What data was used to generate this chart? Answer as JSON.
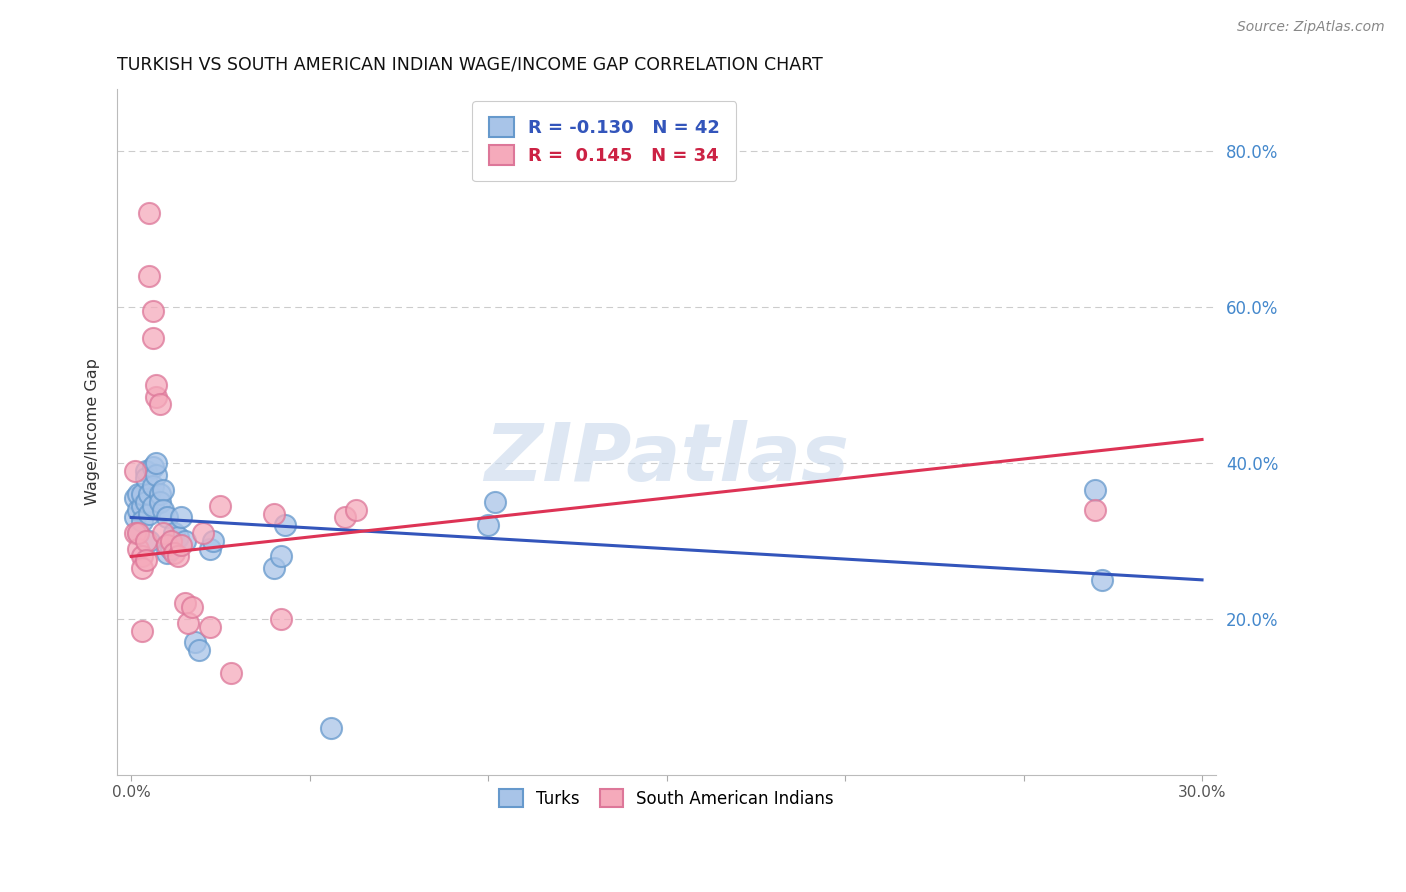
{
  "title": "TURKISH VS SOUTH AMERICAN INDIAN WAGE/INCOME GAP CORRELATION CHART",
  "source": "Source: ZipAtlas.com",
  "ylabel": "Wage/Income Gap",
  "watermark_text": "ZIPatlas",
  "turks_color_face": "#A8C4E8",
  "turks_color_edge": "#6699CC",
  "sa_color_face": "#F5AABB",
  "sa_color_edge": "#DD7799",
  "turks_line_color": "#3355BB",
  "sa_line_color": "#DD3355",
  "right_axis_color": "#4488CC",
  "legend_text_turks_color": "#3355BB",
  "legend_text_sa_color": "#CC2244",
  "legend1_text1": "R = -0.130   N = 42",
  "legend1_text2": "R =  0.145   N = 34",
  "legend2_label1": "Turks",
  "legend2_label2": "South American Indians",
  "xlim_min": 0.0,
  "xlim_max": 0.3,
  "ylim_min": 0.0,
  "ylim_max": 0.88,
  "right_ytick_values": [
    0.2,
    0.4,
    0.6,
    0.8
  ],
  "right_ytick_labels": [
    "20.0%",
    "40.0%",
    "60.0%",
    "80.0%"
  ],
  "xtick_values": [
    0.0,
    0.05,
    0.1,
    0.15,
    0.2,
    0.25,
    0.3
  ],
  "xtick_labels": [
    "0.0%",
    "",
    "",
    "",
    "",
    "",
    "30.0%"
  ],
  "turks_x": [
    0.001,
    0.001,
    0.002,
    0.002,
    0.002,
    0.003,
    0.003,
    0.003,
    0.004,
    0.004,
    0.004,
    0.005,
    0.005,
    0.005,
    0.006,
    0.006,
    0.006,
    0.007,
    0.007,
    0.008,
    0.008,
    0.009,
    0.009,
    0.01,
    0.01,
    0.011,
    0.012,
    0.013,
    0.014,
    0.015,
    0.018,
    0.019,
    0.022,
    0.023,
    0.04,
    0.042,
    0.043,
    0.056,
    0.1,
    0.102,
    0.27,
    0.272
  ],
  "turks_y": [
    0.33,
    0.355,
    0.34,
    0.36,
    0.31,
    0.345,
    0.36,
    0.325,
    0.35,
    0.39,
    0.38,
    0.335,
    0.36,
    0.3,
    0.395,
    0.37,
    0.345,
    0.385,
    0.4,
    0.36,
    0.35,
    0.365,
    0.34,
    0.33,
    0.285,
    0.29,
    0.31,
    0.305,
    0.33,
    0.3,
    0.17,
    0.16,
    0.29,
    0.3,
    0.265,
    0.28,
    0.32,
    0.06,
    0.32,
    0.35,
    0.365,
    0.25
  ],
  "sa_x": [
    0.001,
    0.001,
    0.002,
    0.002,
    0.003,
    0.003,
    0.003,
    0.004,
    0.004,
    0.005,
    0.005,
    0.006,
    0.006,
    0.007,
    0.007,
    0.008,
    0.009,
    0.01,
    0.011,
    0.012,
    0.013,
    0.014,
    0.015,
    0.016,
    0.017,
    0.02,
    0.022,
    0.025,
    0.028,
    0.04,
    0.042,
    0.06,
    0.063,
    0.27
  ],
  "sa_y": [
    0.31,
    0.39,
    0.29,
    0.31,
    0.28,
    0.265,
    0.185,
    0.3,
    0.275,
    0.64,
    0.72,
    0.56,
    0.595,
    0.485,
    0.5,
    0.475,
    0.31,
    0.295,
    0.3,
    0.285,
    0.28,
    0.295,
    0.22,
    0.195,
    0.215,
    0.31,
    0.19,
    0.345,
    0.13,
    0.335,
    0.2,
    0.33,
    0.34,
    0.34
  ]
}
